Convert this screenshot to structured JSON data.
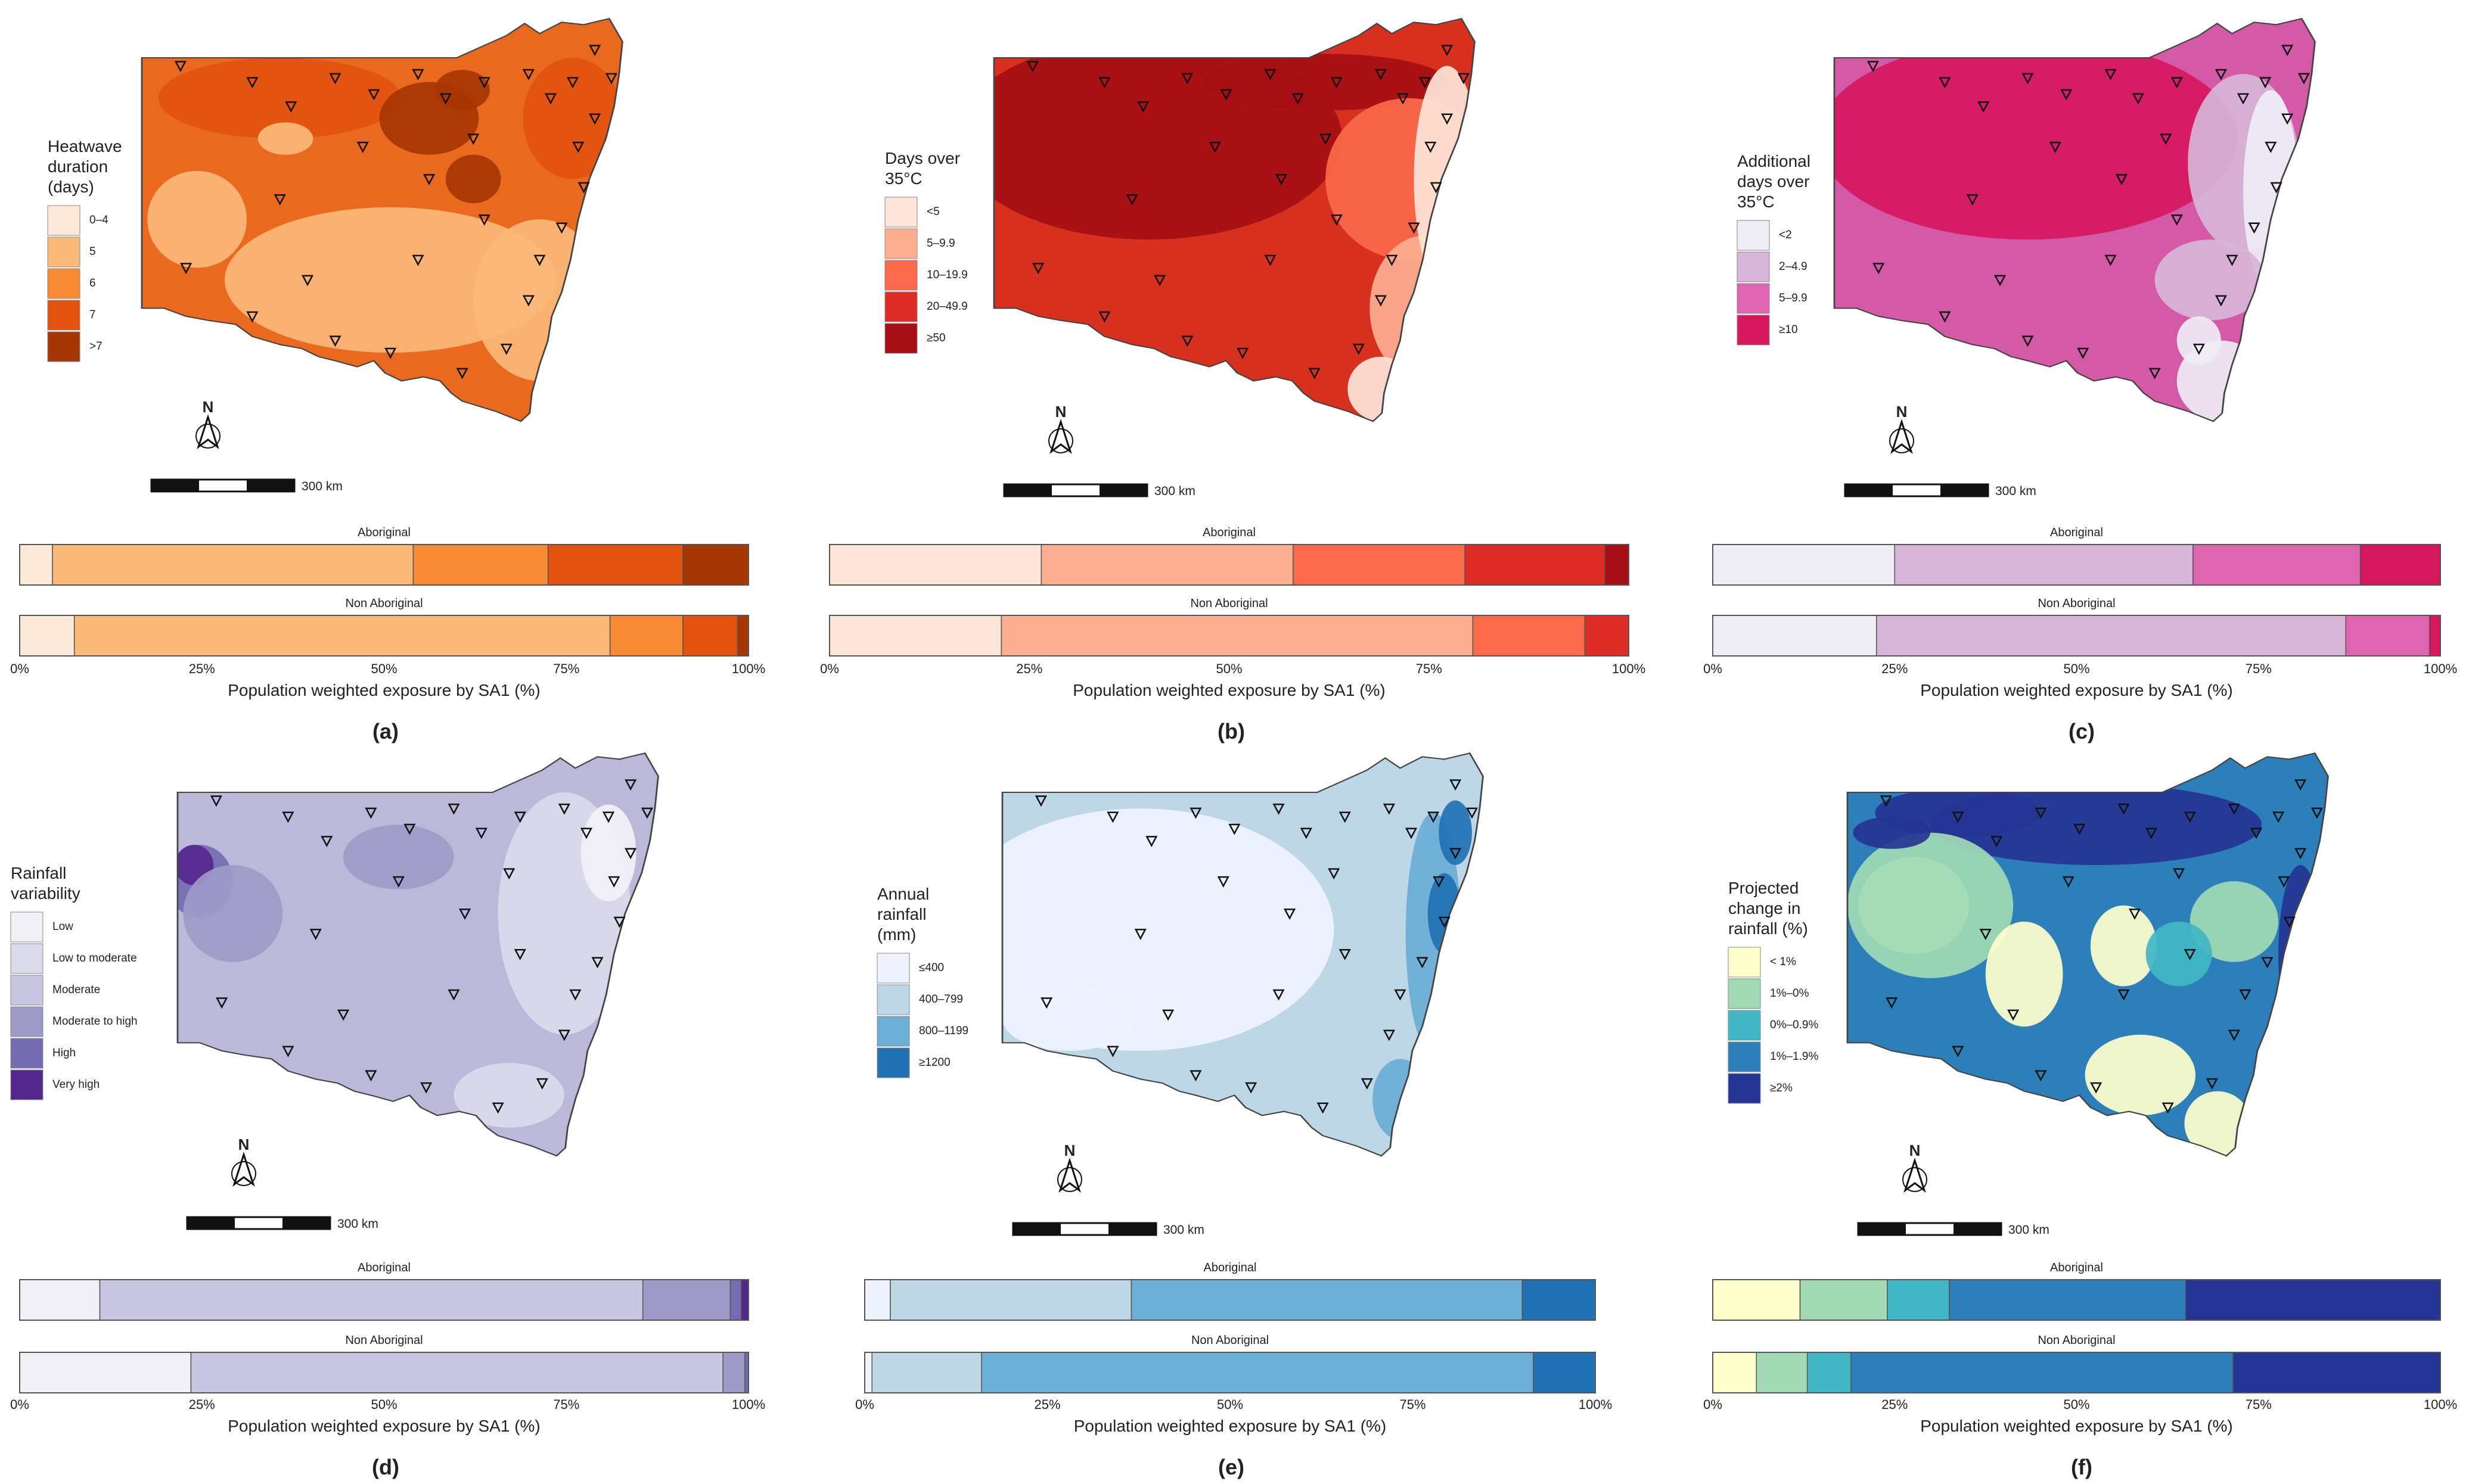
{
  "figure": {
    "axis_title": "Population weighted exposure by SA1 (%)",
    "tick_labels": [
      "0%",
      "25%",
      "50%",
      "75%",
      "100%"
    ],
    "group_labels": [
      "Aboriginal",
      "Non Aboriginal"
    ],
    "scale_label": "300 km",
    "north_label": "N"
  },
  "chart_data": [
    {
      "type": "bar",
      "panel": "(a)",
      "legend_title": [
        "Heatwave",
        "duration",
        "(days)"
      ],
      "categories": [
        "0–4",
        "5",
        "6",
        "7",
        ">7"
      ],
      "colors": [
        "#fde9d9",
        "#fbb97a",
        "#f98a35",
        "#e25310",
        "#a63603"
      ],
      "map_base_color": "#e96a1f",
      "xlim": [
        0,
        100
      ],
      "xlabel": "Population weighted exposure by SA1 (%)",
      "series": [
        {
          "name": "Aboriginal",
          "values": [
            4.5,
            49.5,
            18.5,
            18.5,
            9.0
          ]
        },
        {
          "name": "Non Aboriginal",
          "values": [
            7.5,
            73.5,
            10.0,
            7.5,
            1.5
          ]
        }
      ]
    },
    {
      "type": "bar",
      "panel": "(b)",
      "legend_title": [
        "Days over",
        "35°C"
      ],
      "categories": [
        "<5",
        "5–9.9",
        "10–19.9",
        "20–49.9",
        "≥50"
      ],
      "colors": [
        "#fee5d9",
        "#fcae91",
        "#fb6a4a",
        "#de2d26",
        "#a50f15"
      ],
      "map_base_color": "#d7301f",
      "xlim": [
        0,
        100
      ],
      "xlabel": "Population weighted exposure by SA1 (%)",
      "series": [
        {
          "name": "Aboriginal",
          "values": [
            26.5,
            31.5,
            21.5,
            17.5,
            3.0
          ]
        },
        {
          "name": "Non Aboriginal",
          "values": [
            21.5,
            59.0,
            14.0,
            5.5,
            0.0
          ]
        }
      ]
    },
    {
      "type": "bar",
      "panel": "(c)",
      "legend_title": [
        "Additional",
        "days over",
        "35°C"
      ],
      "categories": [
        "<2",
        "2–4.9",
        "5–9.9",
        "≥10"
      ],
      "colors": [
        "#efedf5",
        "#d7b5d8",
        "#df65b0",
        "#d6175e"
      ],
      "map_base_color": "#d45aa8",
      "xlim": [
        0,
        100
      ],
      "xlabel": "Population weighted exposure by SA1 (%)",
      "series": [
        {
          "name": "Aboriginal",
          "values": [
            25.0,
            41.0,
            23.0,
            11.0
          ]
        },
        {
          "name": "Non Aboriginal",
          "values": [
            22.5,
            64.5,
            11.5,
            1.5
          ]
        }
      ]
    },
    {
      "type": "bar",
      "panel": "(d)",
      "legend_title": [
        "Rainfall",
        "variability"
      ],
      "categories": [
        "Low",
        "Low to moderate",
        "Moderate",
        "Moderate to high",
        "High",
        "Very high"
      ],
      "colors": [
        "#f2f0f7",
        "#dadaeb",
        "#c9c6e2",
        "#9e9ac8",
        "#756bb1",
        "#54278f"
      ],
      "map_base_color": "#bcb8da",
      "xlim": [
        0,
        100
      ],
      "xlabel": "Population weighted exposure by SA1 (%)",
      "series": [
        {
          "name": "Aboriginal",
          "values": [
            11.0,
            0.0,
            74.5,
            12.0,
            1.5,
            1.0
          ]
        },
        {
          "name": "Non Aboriginal",
          "values": [
            23.5,
            0.0,
            73.0,
            3.0,
            0.5,
            0.0
          ]
        }
      ]
    },
    {
      "type": "bar",
      "panel": "(e)",
      "legend_title": [
        "Annual",
        "rainfall",
        "(mm)"
      ],
      "categories": [
        "≤400",
        "400–799",
        "800–1199",
        "≥1200"
      ],
      "colors": [
        "#eff3ff",
        "#bdd7e7",
        "#6baed6",
        "#2171b5"
      ],
      "map_base_color": "#bdd7e7",
      "xlim": [
        0,
        100
      ],
      "xlabel": "Population weighted exposure by SA1 (%)",
      "series": [
        {
          "name": "Aboriginal",
          "values": [
            3.5,
            33.0,
            53.5,
            10.0
          ]
        },
        {
          "name": "Non Aboriginal",
          "values": [
            1.0,
            15.0,
            75.5,
            8.5
          ]
        }
      ]
    },
    {
      "type": "bar",
      "panel": "(f)",
      "legend_title": [
        "Projected",
        "change in",
        "rainfall (%)"
      ],
      "categories": [
        "<   1%",
        "1%–0%",
        "0%–0.9%",
        "1%–1.9%",
        "≥2%"
      ],
      "colors": [
        "#ffffcc",
        "#a1dab4",
        "#41b6c4",
        "#2c7fb8",
        "#253494"
      ],
      "map_base_color": "#2c7fb8",
      "xlim": [
        0,
        100
      ],
      "xlabel": "Population weighted exposure by SA1 (%)",
      "series": [
        {
          "name": "Aboriginal",
          "values": [
            12.0,
            12.0,
            8.5,
            32.5,
            35.0
          ]
        },
        {
          "name": "Non Aboriginal",
          "values": [
            6.0,
            7.0,
            6.0,
            52.5,
            28.5
          ]
        }
      ]
    }
  ]
}
